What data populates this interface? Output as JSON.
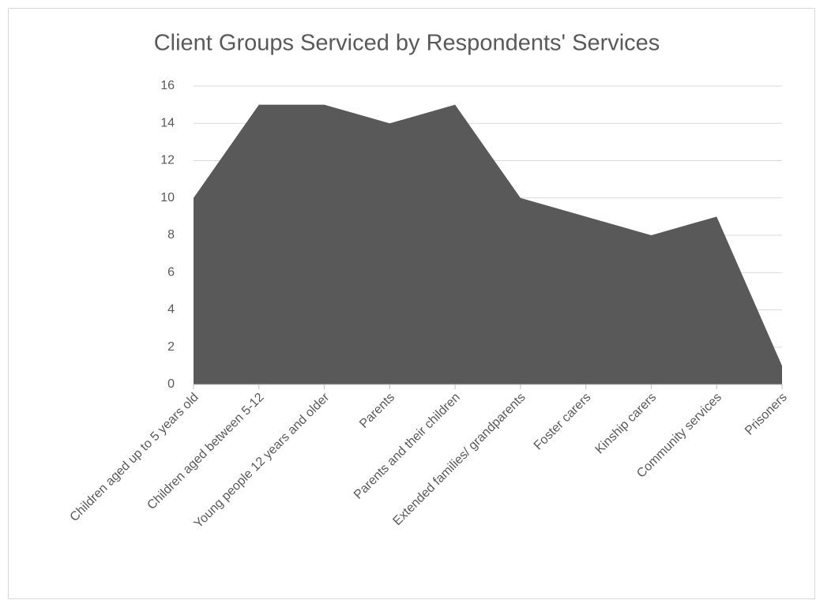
{
  "chart_data": {
    "type": "area",
    "title": "Client Groups Serviced by Respondents' Services",
    "categories": [
      "Children aged up to 5 years old",
      "Children aged between 5-12",
      "Young people 12 years and older",
      "Parents",
      "Parents and their children",
      "Extended families/ grandparents",
      "Foster carers",
      "Kinship carers",
      "Community services",
      "Prisoners"
    ],
    "values": [
      10,
      15,
      15,
      14,
      15,
      10,
      9,
      8,
      9,
      1
    ],
    "color": "#595959",
    "ylim": [
      0,
      16
    ],
    "yticks": [
      0,
      2,
      4,
      6,
      8,
      10,
      12,
      14,
      16
    ],
    "grid": true
  }
}
